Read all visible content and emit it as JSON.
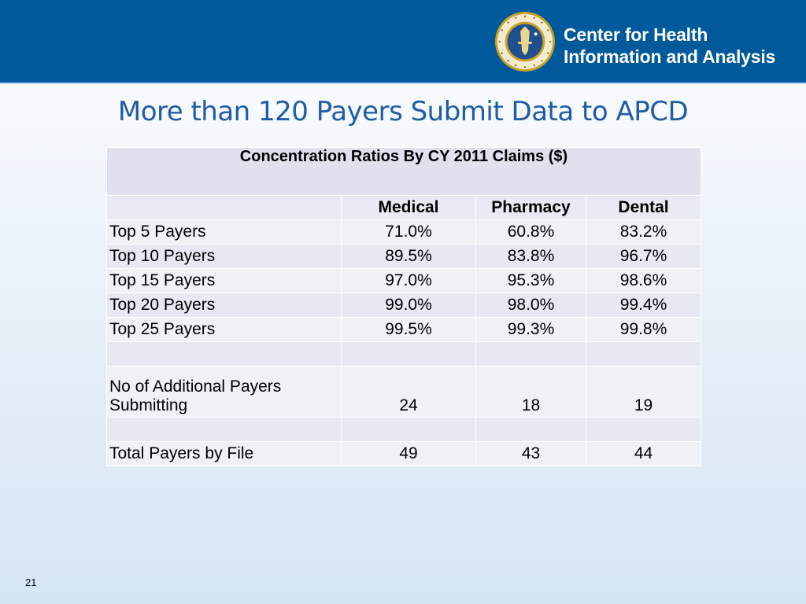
{
  "organization": {
    "name_line1": "Center for Health",
    "name_line2": "Information and Analysis",
    "seal_icon": "massachusetts-seal-icon"
  },
  "slide": {
    "title": "More than 120 Payers Submit Data to APCD",
    "page_number": "21"
  },
  "table": {
    "title": "Concentration Ratios By CY 2011 Claims ($)",
    "columns": [
      "",
      "Medical",
      "Pharmacy",
      "Dental"
    ],
    "rows": [
      {
        "label": "Top 5 Payers",
        "medical": "71.0%",
        "pharmacy": "60.8%",
        "dental": "83.2%"
      },
      {
        "label": "Top 10 Payers",
        "medical": "89.5%",
        "pharmacy": "83.8%",
        "dental": "96.7%"
      },
      {
        "label": "Top 15 Payers",
        "medical": "97.0%",
        "pharmacy": "95.3%",
        "dental": "98.6%"
      },
      {
        "label": "Top 20 Payers",
        "medical": "99.0%",
        "pharmacy": "98.0%",
        "dental": "99.4%"
      },
      {
        "label": "Top 25 Payers",
        "medical": "99.5%",
        "pharmacy": "99.3%",
        "dental": "99.8%"
      },
      {
        "label": "",
        "medical": "",
        "pharmacy": "",
        "dental": ""
      },
      {
        "label": "No of Additional Payers Submitting",
        "medical": "24",
        "pharmacy": "18",
        "dental": "19"
      },
      {
        "label": "",
        "medical": "",
        "pharmacy": "",
        "dental": ""
      },
      {
        "label": "Total Payers by File",
        "medical": "49",
        "pharmacy": "43",
        "dental": "44"
      }
    ]
  }
}
